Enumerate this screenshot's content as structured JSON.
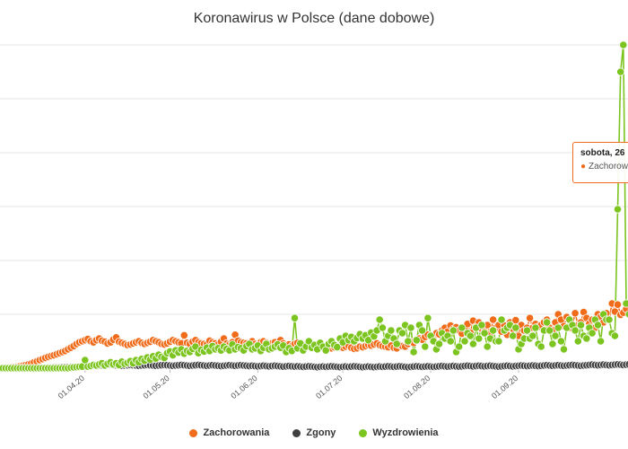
{
  "chart_data": {
    "type": "line",
    "title": "Koronawirus w Polsce (dane dobowe)",
    "x_tick_labels": [
      "01.04.20",
      "01.05.20",
      "01.06.20",
      "01.07.20",
      "01.08.20",
      "01.09.20"
    ],
    "grid": "horizontal",
    "legend_position": "bottom",
    "series": [
      {
        "name": "Zachorowania",
        "color": "#f06b1a",
        "values": [
          0,
          0,
          1,
          2,
          3,
          4,
          5,
          7,
          9,
          11,
          14,
          17,
          22,
          25,
          30,
          34,
          38,
          42,
          45,
          48,
          52,
          56,
          60,
          64,
          70,
          76,
          82,
          90,
          96,
          100,
          104,
          108,
          100,
          96,
          104,
          110,
          102,
          98,
          92,
          96,
          106,
          114,
          98,
          94,
          90,
          86,
          88,
          92,
          96,
          100,
          94,
          90,
          94,
          98,
          104,
          100,
          96,
          90,
          88,
          92,
          98,
          104,
          100,
          96,
          92,
          122,
          94,
          90,
          98,
          104,
          96,
          92,
          90,
          88,
          102,
          96,
          92,
          88,
          98,
          110,
          92,
          88,
          96,
          124,
          102,
          96,
          94,
          92,
          88,
          100,
          90,
          86,
          96,
          100,
          94,
          88,
          92,
          96,
          90,
          104,
          92,
          86,
          88,
          82,
          90,
          94,
          90,
          86,
          84,
          80,
          78,
          82,
          86,
          80,
          78,
          80,
          76,
          74,
          78,
          82,
          78,
          76,
          80,
          84,
          76,
          72,
          74,
          80,
          78,
          82,
          86,
          84,
          88,
          92,
          86,
          82,
          80,
          78,
          84,
          76,
          74,
          86,
          82,
          80,
          90,
          98,
          94,
          102,
          110,
          106,
          116,
          124,
          120,
          118,
          130,
          126,
          140,
          150,
          136,
          158,
          146,
          152,
          140,
          128,
          150,
          164,
          132,
          176,
          154,
          170,
          146,
          136,
          160,
          126,
          180,
          150,
          160,
          136,
          158,
          124,
          170,
          146,
          178,
          120,
          160,
          140,
          150,
          186,
          150,
          164,
          154,
          160,
          170,
          180,
          150,
          140,
          170,
          200,
          180,
          156,
          190,
          150,
          160,
          204,
          160,
          170,
          208,
          186,
          166,
          180,
          150,
          200,
          190,
          170,
          204,
          180,
          240,
          210,
          236,
          198,
          206,
          220
        ]
      },
      {
        "name": "Zgony",
        "color": "#3f3f3f",
        "values": [
          0,
          0,
          0,
          0,
          0,
          0,
          0,
          0,
          0,
          0,
          0,
          1,
          1,
          1,
          1,
          2,
          2,
          2,
          2,
          3,
          3,
          3,
          4,
          4,
          4,
          5,
          5,
          6,
          6,
          7,
          7,
          8,
          8,
          9,
          9,
          10,
          11,
          12,
          13,
          14,
          12,
          11,
          10,
          9,
          10,
          11,
          12,
          11,
          10,
          9,
          10,
          11,
          12,
          11,
          10,
          9,
          10,
          11,
          12,
          11,
          10,
          9,
          10,
          11,
          12,
          11,
          10,
          9,
          10,
          11,
          12,
          11,
          10,
          9,
          10,
          11,
          10,
          9,
          8,
          9,
          10,
          11,
          10,
          9,
          10,
          11,
          10,
          9,
          8,
          9,
          8,
          7,
          8,
          9,
          8,
          7,
          8,
          9,
          8,
          7,
          6,
          7,
          8,
          7,
          6,
          7,
          6,
          5,
          6,
          7,
          6,
          5,
          4,
          5,
          6,
          5,
          6,
          7,
          6,
          5,
          4,
          5,
          6,
          5,
          6,
          7,
          6,
          5,
          4,
          5,
          6,
          5,
          4,
          5,
          6,
          5,
          6,
          7,
          6,
          5,
          6,
          7,
          6,
          5,
          4,
          5,
          6,
          7,
          6,
          5,
          6,
          7,
          6,
          5,
          6,
          7,
          8,
          7,
          6,
          7,
          8,
          7,
          6,
          7,
          8,
          9,
          8,
          7,
          8,
          9,
          8,
          7,
          8,
          9,
          8,
          7,
          6,
          7,
          8,
          9,
          8,
          7,
          8,
          9,
          10,
          9,
          8,
          9,
          10,
          9,
          8,
          9,
          10,
          11,
          10,
          9,
          10,
          11,
          10,
          9,
          10,
          11,
          12,
          11,
          10,
          9,
          10,
          11,
          12,
          13,
          12,
          11,
          12,
          13,
          12,
          11,
          12,
          13,
          14,
          13,
          12,
          13,
          14,
          12,
          11
        ]
      },
      {
        "name": "Wyzdrowienia",
        "color": "#7cc41f",
        "values": [
          0,
          0,
          0,
          0,
          0,
          0,
          0,
          0,
          0,
          0,
          0,
          0,
          0,
          0,
          0,
          0,
          0,
          0,
          0,
          0,
          0,
          0,
          0,
          0,
          0,
          2,
          3,
          4,
          5,
          6,
          30,
          6,
          8,
          12,
          10,
          14,
          18,
          10,
          16,
          22,
          14,
          18,
          12,
          24,
          16,
          20,
          26,
          18,
          30,
          22,
          34,
          28,
          40,
          32,
          44,
          36,
          50,
          42,
          38,
          56,
          62,
          48,
          66,
          58,
          70,
          54,
          64,
          60,
          72,
          80,
          56,
          68,
          62,
          76,
          64,
          82,
          70,
          74,
          66,
          80,
          72,
          66,
          88,
          70,
          78,
          74,
          66,
          82,
          90,
          70,
          74,
          84,
          64,
          76,
          90,
          70,
          74,
          80,
          88,
          76,
          84,
          60,
          74,
          64,
          186,
          74,
          92,
          66,
          80,
          100,
          76,
          86,
          70,
          94,
          80,
          66,
          90,
          100,
          86,
          78,
          110,
          96,
          120,
          104,
          116,
          100,
          112,
          126,
          110,
          122,
          104,
          132,
          118,
          140,
          180,
          150,
          100,
          120,
          140,
          110,
          90,
          140,
          130,
          160,
          100,
          150,
          60,
          104,
          160,
          140,
          80,
          186,
          120,
          100,
          70,
          90,
          130,
          110,
          120,
          100,
          140,
          60,
          80,
          150,
          100,
          130,
          120,
          90,
          150,
          110,
          160,
          130,
          80,
          110,
          140,
          100,
          100,
          180,
          140,
          150,
          160,
          120,
          150,
          70,
          90,
          110,
          140,
          110,
          120,
          150,
          90,
          80,
          140,
          170,
          140,
          90,
          120,
          150,
          100,
          70,
          150,
          180,
          160,
          140,
          100,
          160,
          120,
          110,
          150,
          130,
          180,
          160,
          100,
          200,
          180,
          180,
          130,
          120,
          590,
          1100,
          1200,
          240,
          200,
          220
        ]
      }
    ]
  },
  "legend": {
    "items": [
      "Zachorowania",
      "Zgony",
      "Wyzdrowienia"
    ]
  },
  "tooltip": {
    "date_text": "sobota, 26",
    "series_text": "Zachorowania"
  }
}
